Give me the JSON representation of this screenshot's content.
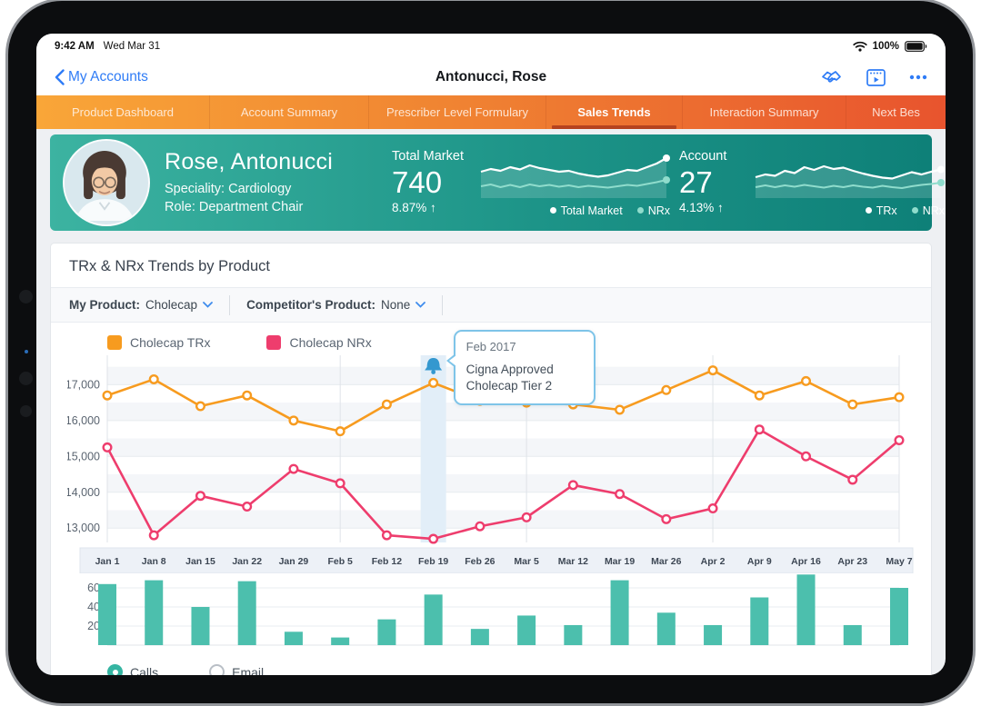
{
  "status_bar": {
    "time": "9:42 AM",
    "date": "Wed Mar 31",
    "battery_pct": "100%"
  },
  "nav": {
    "back_label": "My Accounts",
    "title": "Antonucci, Rose",
    "icons": [
      "handshake-icon",
      "calendar-play-icon",
      "more-options-icon"
    ]
  },
  "tabs": [
    {
      "label": "Product Dashboard",
      "selected": false
    },
    {
      "label": "Account Summary",
      "selected": false
    },
    {
      "label": "Prescriber Level Formulary",
      "selected": false
    },
    {
      "label": "Sales Trends",
      "selected": true
    },
    {
      "label": "Interaction Summary",
      "selected": false
    },
    {
      "label": "Next Bes",
      "selected": false
    }
  ],
  "profile": {
    "name": "Rose, Antonucci",
    "speciality": "Speciality: Cardiology",
    "role": "Role: Department Chair",
    "total_market": {
      "label": "Total Market",
      "value": "740",
      "change": "8.87%",
      "arrow": "↑",
      "legend": [
        {
          "label": "Total Market",
          "color": "#ffffff"
        },
        {
          "label": "NRx",
          "color": "#8fdccc"
        }
      ]
    },
    "account": {
      "label": "Account",
      "value": "27",
      "change": "4.13%",
      "arrow": "↑",
      "legend": [
        {
          "label": "TRx",
          "color": "#ffffff"
        },
        {
          "label": "NRx",
          "color": "#8fdccc"
        }
      ]
    }
  },
  "panel": {
    "title": "TRx & NRx Trends by Product",
    "filters": [
      {
        "label": "My Product:",
        "value": "Cholecap"
      },
      {
        "label": "Competitor's Product:",
        "value": "None"
      }
    ],
    "controls": [
      {
        "label": "Calls",
        "selected": true
      },
      {
        "label": "Email",
        "selected": false
      }
    ]
  },
  "chart_data": [
    {
      "id": "trx_nrx_trends",
      "type": "line",
      "title": "TRx & NRx Trends by Product",
      "x_labels": [
        "Jan 1",
        "Jan 8",
        "Jan 15",
        "Jan 22",
        "Jan 29",
        "Feb 5",
        "Feb 12",
        "Feb 19",
        "Feb 26",
        "Mar 5",
        "Mar 12",
        "Mar 19",
        "Mar 26",
        "Apr 2",
        "Apr 9",
        "Apr 16",
        "Apr 23",
        "May 7"
      ],
      "series": [
        {
          "name": "Cholecap TRx",
          "color": "#F79B1F",
          "values": [
            16700,
            17150,
            16400,
            16700,
            16000,
            15700,
            16450,
            17050,
            16550,
            16500,
            16450,
            16300,
            16850,
            17400,
            16700,
            17100,
            16450,
            16650
          ]
        },
        {
          "name": "Cholecap NRx",
          "color": "#EE3D6D",
          "values": [
            15250,
            12800,
            13900,
            13600,
            14650,
            14250,
            12800,
            12700,
            13050,
            13300,
            14200,
            13950,
            13250,
            13550,
            15750,
            15000,
            14350,
            15450
          ]
        }
      ],
      "ylim": [
        12600,
        17820
      ],
      "yticks": [
        13000,
        14000,
        15000,
        16000,
        17000
      ],
      "grid_x_indices": [
        0,
        5,
        9,
        13,
        17
      ],
      "annotation": {
        "index": 7,
        "x_label": "Feb 19",
        "date": "Feb 2017",
        "line1": "Cigna Approved",
        "line2": "Cholecap Tier 2"
      }
    },
    {
      "id": "calls_by_week",
      "type": "bar",
      "name": "Calls",
      "categories": [
        "Jan 1",
        "Jan 8",
        "Jan 15",
        "Jan 22",
        "Jan 29",
        "Feb 5",
        "Feb 12",
        "Feb 19",
        "Feb 26",
        "Mar 5",
        "Mar 12",
        "Mar 19",
        "Mar 26",
        "Apr 2",
        "Apr 9",
        "Apr 16",
        "Apr 23",
        "May 7"
      ],
      "values": [
        64,
        68,
        40,
        67,
        14,
        8,
        27,
        53,
        17,
        31,
        21,
        68,
        34,
        21,
        50,
        74,
        21,
        60
      ],
      "yticks": [
        20,
        40,
        60
      ],
      "ylim": [
        0,
        76
      ],
      "color": "#4CBFAD"
    },
    {
      "id": "total_market_spark",
      "type": "line",
      "series": [
        {
          "name": "Total Market",
          "color": "#ffffff",
          "values": [
            58,
            64,
            60,
            68,
            63,
            72,
            66,
            62,
            58,
            60,
            54,
            50,
            47,
            50,
            56,
            62,
            60,
            68,
            76,
            88
          ]
        },
        {
          "name": "NRx",
          "color": "#8fdccc",
          "values": [
            26,
            30,
            24,
            29,
            24,
            30,
            26,
            29,
            25,
            28,
            24,
            27,
            25,
            23,
            26,
            29,
            27,
            31,
            35,
            40
          ]
        }
      ]
    },
    {
      "id": "account_spark",
      "type": "line",
      "series": [
        {
          "name": "TRx",
          "color": "#ffffff",
          "values": [
            46,
            52,
            49,
            60,
            55,
            68,
            62,
            70,
            64,
            67,
            60,
            54,
            49,
            45,
            43,
            50,
            57,
            52,
            58,
            63
          ]
        },
        {
          "name": "NRx",
          "color": "#8fdccc",
          "values": [
            24,
            28,
            24,
            28,
            25,
            29,
            26,
            23,
            27,
            24,
            28,
            25,
            23,
            27,
            24,
            22,
            26,
            29,
            31,
            34
          ]
        }
      ]
    }
  ],
  "colors": {
    "tab_gradient_left": "#f9a638",
    "tab_gradient_right": "#e8542e",
    "tab_underline": "#b6431f",
    "teal_card_left": "#3cb3a1",
    "teal_card_right": "#0e8078",
    "trx_orange": "#F79B1F",
    "nrx_pink": "#EE3D6D",
    "bar_teal": "#4CBFAD",
    "highlight_band": "#e2eef8",
    "annotation_blue": "#3498cf",
    "ios_blue": "#2f7cf6"
  }
}
